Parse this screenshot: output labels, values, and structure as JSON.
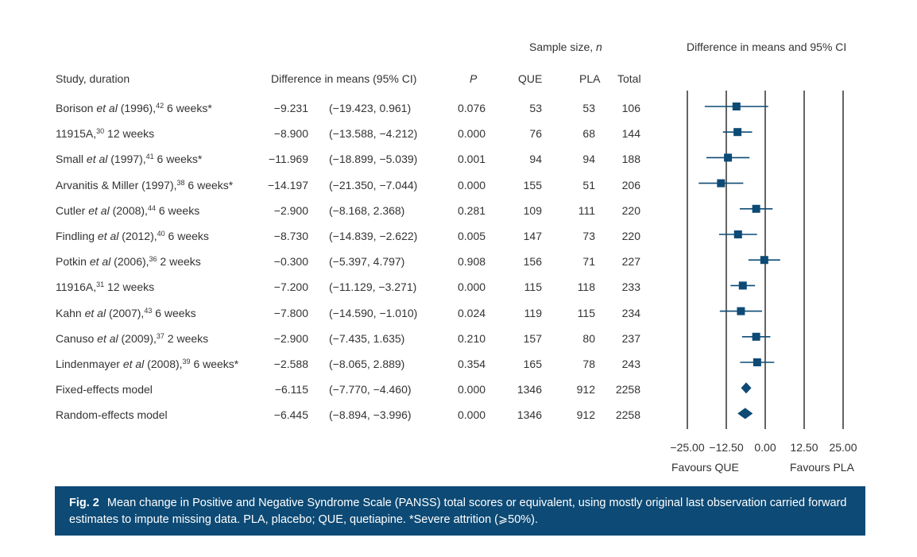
{
  "header": {
    "sample_size_label": "Sample size, ",
    "sample_size_n": "n",
    "study_col": "Study, duration",
    "diff_col": "Difference in means (95% CI)",
    "p_col": "P",
    "que_col": "QUE",
    "pla_col": "PLA",
    "total_col": "Total",
    "plot_title": "Difference in means and 95% CI"
  },
  "rows": [
    {
      "name_a": "Borison ",
      "name_it": "et al",
      "name_b": " (1996),",
      "ref": "42",
      "dur": " 6 weeks*",
      "diff": "−9.231",
      "ci": "(−19.423, 0.961)",
      "p": "0.076",
      "que": "53",
      "pla": "53",
      "total": "106"
    },
    {
      "name_a": "11915A,",
      "name_it": "",
      "name_b": "",
      "ref": "30",
      "dur": " 12 weeks",
      "diff": "−8.900",
      "ci": "(−13.588, −4.212)",
      "p": "0.000",
      "que": "76",
      "pla": "68",
      "total": "144"
    },
    {
      "name_a": "Small ",
      "name_it": "et al",
      "name_b": " (1997),",
      "ref": "41",
      "dur": " 6 weeks*",
      "diff": "−11.969",
      "ci": "(−18.899, −5.039)",
      "p": "0.001",
      "que": "94",
      "pla": "94",
      "total": "188"
    },
    {
      "name_a": "Arvanitis & Miller (1997),",
      "name_it": "",
      "name_b": "",
      "ref": "38",
      "dur": " 6 weeks*",
      "diff": "−14.197",
      "ci": "(−21.350, −7.044)",
      "p": "0.000",
      "que": "155",
      "pla": "51",
      "total": "206"
    },
    {
      "name_a": "Cutler ",
      "name_it": "et al",
      "name_b": " (2008),",
      "ref": "44",
      "dur": " 6 weeks",
      "diff": "−2.900",
      "ci": "(−8.168, 2.368)",
      "p": "0.281",
      "que": "109",
      "pla": "111",
      "total": "220"
    },
    {
      "name_a": "Findling ",
      "name_it": "et al",
      "name_b": " (2012),",
      "ref": "40",
      "dur": " 6 weeks",
      "diff": "−8.730",
      "ci": "(−14.839, −2.622)",
      "p": "0.005",
      "que": "147",
      "pla": "73",
      "total": "220"
    },
    {
      "name_a": "Potkin ",
      "name_it": "et al",
      "name_b": " (2006),",
      "ref": "36",
      "dur": " 2 weeks",
      "diff": "−0.300",
      "ci": "(−5.397, 4.797)",
      "p": "0.908",
      "que": "156",
      "pla": "71",
      "total": "227"
    },
    {
      "name_a": "11916A,",
      "name_it": "",
      "name_b": "",
      "ref": "31",
      "dur": " 12 weeks",
      "diff": "−7.200",
      "ci": "(−11.129, −3.271)",
      "p": "0.000",
      "que": "115",
      "pla": "118",
      "total": "233"
    },
    {
      "name_a": "Kahn ",
      "name_it": "et al",
      "name_b": " (2007),",
      "ref": "43",
      "dur": " 6 weeks",
      "diff": "−7.800",
      "ci": "(−14.590, −1.010)",
      "p": "0.024",
      "que": "119",
      "pla": "115",
      "total": "234"
    },
    {
      "name_a": "Canuso ",
      "name_it": "et al",
      "name_b": " (2009),",
      "ref": "37",
      "dur": " 2 weeks",
      "diff": "−2.900",
      "ci": "(−7.435, 1.635)",
      "p": "0.210",
      "que": "157",
      "pla": "80",
      "total": "237"
    },
    {
      "name_a": "Lindenmayer ",
      "name_it": "et al",
      "name_b": " (2008),",
      "ref": "39",
      "dur": " 6 weeks*",
      "diff": "−2.588",
      "ci": "(−8.065, 2.889)",
      "p": "0.354",
      "que": "165",
      "pla": "78",
      "total": "243"
    },
    {
      "name_a": "Fixed-effects model",
      "name_it": "",
      "name_b": "",
      "ref": "",
      "dur": "",
      "diff": "−6.115",
      "ci": "(−7.770, −4.460)",
      "p": "0.000",
      "que": "1346",
      "pla": "912",
      "total": "2258"
    },
    {
      "name_a": "Random-effects model",
      "name_it": "",
      "name_b": "",
      "ref": "",
      "dur": "",
      "diff": "−6.445",
      "ci": "(−8.894, −3.996)",
      "p": "0.000",
      "que": "1346",
      "pla": "912",
      "total": "2258"
    }
  ],
  "axis": {
    "ticks": [
      "−25.00",
      "−12.50",
      "0.00",
      "12.50",
      "25.00"
    ],
    "favours_left": "Favours QUE",
    "favours_right": "Favours PLA"
  },
  "caption": {
    "label": "Fig. 2",
    "text": "Mean change in Positive and Negative Syndrome Scale (PANSS) total scores or equivalent, using mostly original last observation carried forward estimates to impute missing data. PLA, placebo; QUE, quetiapine. *Severe attrition (⩾50%)."
  },
  "chart_data": {
    "type": "forest",
    "title": "Difference in means and 95% CI",
    "xlim": [
      -25,
      25
    ],
    "xticks": [
      -25,
      -12.5,
      0,
      12.5,
      25
    ],
    "marker_color": "#0d4a75",
    "studies": [
      {
        "label": "Borison et al (1996)",
        "estimate": -9.231,
        "lower": -19.423,
        "upper": 0.961,
        "weight": 106
      },
      {
        "label": "11915A",
        "estimate": -8.9,
        "lower": -13.588,
        "upper": -4.212,
        "weight": 144
      },
      {
        "label": "Small et al (1997)",
        "estimate": -11.969,
        "lower": -18.899,
        "upper": -5.039,
        "weight": 188
      },
      {
        "label": "Arvanitis & Miller (1997)",
        "estimate": -14.197,
        "lower": -21.35,
        "upper": -7.044,
        "weight": 206
      },
      {
        "label": "Cutler et al (2008)",
        "estimate": -2.9,
        "lower": -8.168,
        "upper": 2.368,
        "weight": 220
      },
      {
        "label": "Findling et al (2012)",
        "estimate": -8.73,
        "lower": -14.839,
        "upper": -2.622,
        "weight": 220
      },
      {
        "label": "Potkin et al (2006)",
        "estimate": -0.3,
        "lower": -5.397,
        "upper": 4.797,
        "weight": 227
      },
      {
        "label": "11916A",
        "estimate": -7.2,
        "lower": -11.129,
        "upper": -3.271,
        "weight": 233
      },
      {
        "label": "Kahn et al (2007)",
        "estimate": -7.8,
        "lower": -14.59,
        "upper": -1.01,
        "weight": 234
      },
      {
        "label": "Canuso et al (2009)",
        "estimate": -2.9,
        "lower": -7.435,
        "upper": 1.635,
        "weight": 237
      },
      {
        "label": "Lindenmayer et al (2008)",
        "estimate": -2.588,
        "lower": -8.065,
        "upper": 2.889,
        "weight": 243
      }
    ],
    "pooled": [
      {
        "label": "Fixed-effects model",
        "estimate": -6.115,
        "lower": -7.77,
        "upper": -4.46
      },
      {
        "label": "Random-effects model",
        "estimate": -6.445,
        "lower": -8.894,
        "upper": -3.996
      }
    ]
  }
}
